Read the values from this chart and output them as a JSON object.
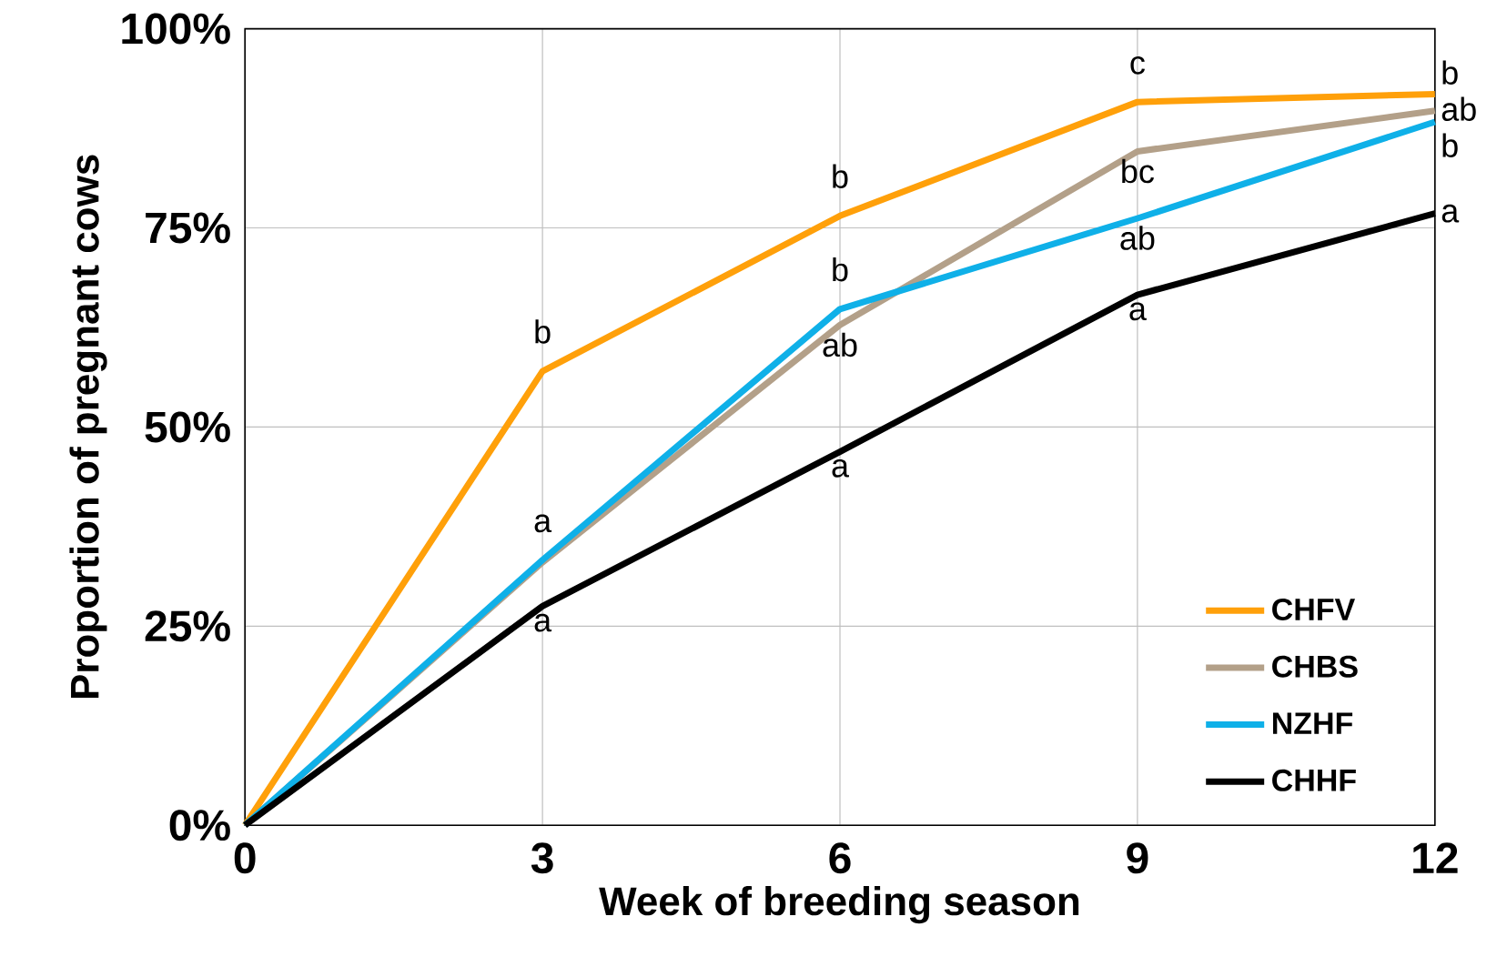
{
  "chart_data": {
    "type": "line",
    "xlabel": "Week of breeding season",
    "ylabel": "Proportion of pregnant cows",
    "x": [
      0,
      3,
      6,
      9,
      12
    ],
    "series": [
      {
        "name": "CHFV",
        "color": "#ffa00a",
        "values": [
          0,
          57,
          76.5,
          90.8,
          91.8
        ]
      },
      {
        "name": "CHBS",
        "color": "#b3a089",
        "values": [
          0,
          33,
          62.8,
          84.6,
          89.7
        ]
      },
      {
        "name": "NZHF",
        "color": "#0fb0e8",
        "values": [
          0,
          33.3,
          64.8,
          76.2,
          88.3
        ]
      },
      {
        "name": "CHHF",
        "color": "#000000",
        "values": [
          0,
          27.5,
          46.9,
          66.6,
          76.8
        ]
      }
    ],
    "xlim": [
      0,
      12
    ],
    "xticks": [
      0,
      3,
      6,
      9,
      12
    ],
    "ylim": [
      0,
      100
    ],
    "yticks": [
      {
        "value": 0,
        "label": "0%"
      },
      {
        "value": 25,
        "label": "25%"
      },
      {
        "value": 50,
        "label": "50%"
      },
      {
        "value": 75,
        "label": "75%"
      },
      {
        "value": 100,
        "label": "100%"
      }
    ],
    "grid": true,
    "legend": "bottom right",
    "annotations": [
      {
        "text": "b",
        "x": 3,
        "y": 57
      },
      {
        "text": "a",
        "x": 3,
        "y": 33.3
      },
      {
        "text": "a",
        "x": 3,
        "y": 27.5
      },
      {
        "text": "b",
        "x": 6,
        "y": 76.5
      },
      {
        "text": "b",
        "x": 6,
        "y": 64.8
      },
      {
        "text": "ab",
        "x": 6,
        "y": 62.8
      },
      {
        "text": "a",
        "x": 6,
        "y": 46.9
      },
      {
        "text": "c",
        "x": 9,
        "y": 90.8
      },
      {
        "text": "bc",
        "x": 9,
        "y": 84.6
      },
      {
        "text": "ab",
        "x": 9,
        "y": 76.2
      },
      {
        "text": "a",
        "x": 9,
        "y": 66.6
      },
      {
        "text": "b",
        "x": 12,
        "y": 91.8
      },
      {
        "text": "ab",
        "x": 12,
        "y": 89.7
      },
      {
        "text": "b",
        "x": 12,
        "y": 88.3
      },
      {
        "text": "a",
        "x": 12,
        "y": 76.8
      }
    ]
  }
}
